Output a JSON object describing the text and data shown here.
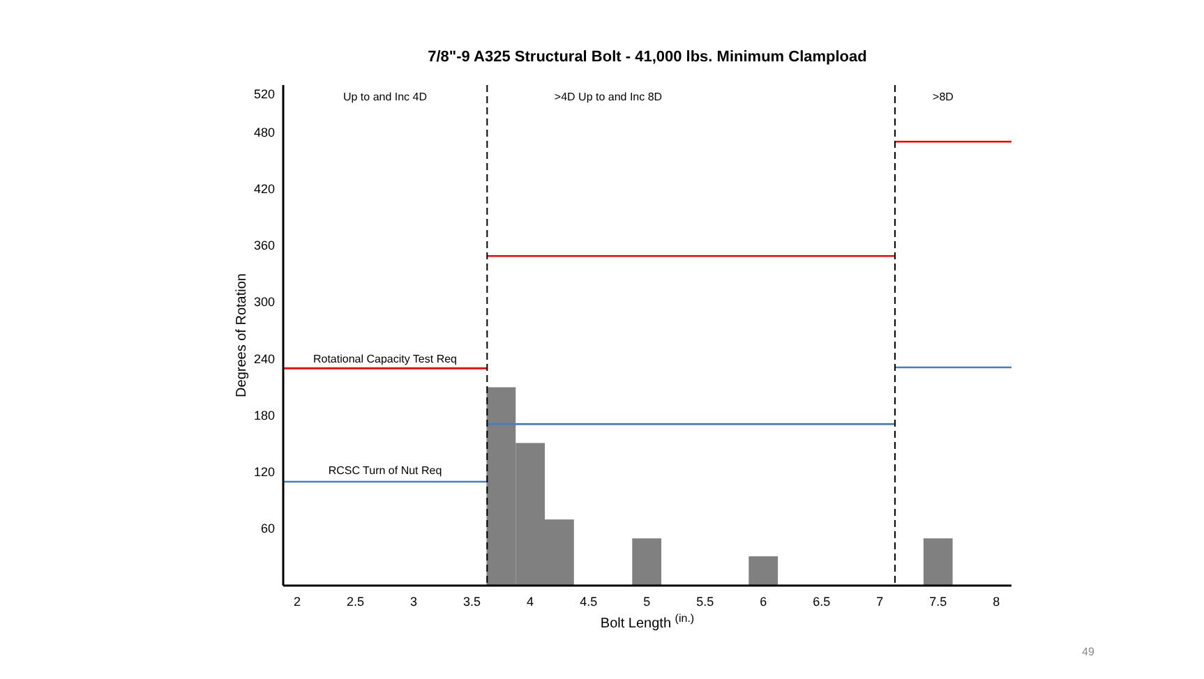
{
  "chart_data": {
    "type": "histogram",
    "title": "7/8\"-9 A325 Structural Bolt - 41,000 lbs. Minimum Clampload",
    "xlabel": "Bolt Length $^{(in.)}$",
    "ylabel": "Degrees of Rotation",
    "bins": [
      3.625,
      3.875,
      4.125,
      4.375,
      4.625,
      4.875,
      5.125,
      5.375,
      5.625,
      5.875,
      6.125,
      6.375,
      6.625,
      6.875,
      7.125,
      7.375,
      7.625
    ],
    "values": [
      210,
      151,
      70,
      0,
      0,
      50,
      0,
      0,
      0,
      31,
      0,
      0,
      0,
      0,
      0,
      50
    ],
    "color": "#808080",
    "series": [
      {
        "type": "line",
        "x": [
          1.88,
          3.63
        ],
        "values": [
          230,
          230
        ],
        "color": "#ff0000"
      },
      {
        "type": "line",
        "x": [
          3.63,
          7.13
        ],
        "values": [
          349,
          349
        ],
        "color": "#ff0000"
      },
      {
        "type": "line",
        "x": [
          7.13,
          8.13
        ],
        "values": [
          470,
          470
        ],
        "color": "#ff0000"
      },
      {
        "type": "line",
        "x": [
          1.88,
          3.63
        ],
        "values": [
          110,
          110
        ],
        "color": "#4a7ebb"
      },
      {
        "type": "line",
        "x": [
          3.63,
          7.13
        ],
        "values": [
          171,
          171
        ],
        "color": "#4a7ebb"
      },
      {
        "type": "line",
        "x": [
          7.13,
          8.13
        ],
        "values": [
          231,
          231
        ],
        "color": "#4a7ebb"
      }
    ],
    "ref_lines": [
      {
        "axis": "x",
        "value": 3.63,
        "color": "#000000",
        "line_style": "dashed"
      },
      {
        "axis": "x",
        "value": 7.13,
        "color": "#000000",
        "line_style": "dashed"
      }
    ],
    "annotations": [
      "Up to and Inc 4D",
      ">4D Up to and Inc 8D",
      ">8D",
      "Rotational Capacity Test Req",
      "RCSC Turn of Nut Req",
      "49"
    ],
    "xlim": [
      1.88,
      8.13
    ],
    "xticks": [
      2,
      2.5,
      3,
      3.5,
      4,
      4.5,
      5,
      5.5,
      6,
      6.5,
      7,
      7.5,
      8
    ],
    "ylim": [
      0,
      530
    ],
    "yticks": [
      60,
      120,
      180,
      240,
      300,
      360,
      420,
      480,
      520
    ],
    "grid": false
  }
}
